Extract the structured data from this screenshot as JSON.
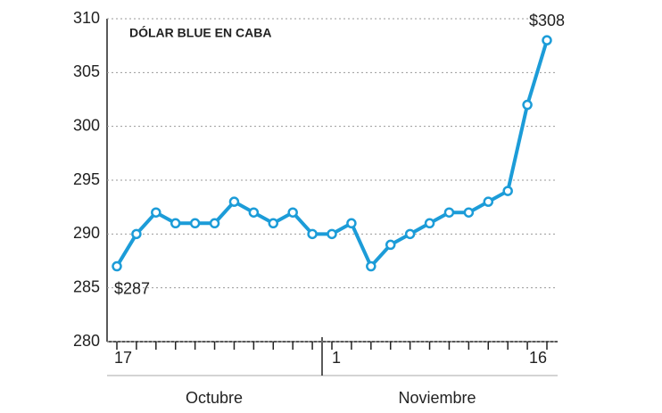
{
  "chart_data": {
    "type": "line",
    "title": "DÓLAR BLUE EN CABA",
    "categories": [
      "17",
      null,
      null,
      null,
      null,
      null,
      null,
      null,
      null,
      null,
      null,
      "1",
      null,
      null,
      null,
      null,
      null,
      null,
      null,
      null,
      null,
      null,
      "16"
    ],
    "x_groups": [
      "Octubre",
      "Noviembre"
    ],
    "series": [
      {
        "name": "Dólar blue",
        "color": "#1c9cd8",
        "values": [
          287,
          290,
          292,
          291,
          291,
          291,
          293,
          292,
          291,
          292,
          290,
          290,
          291,
          287,
          289,
          290,
          291,
          292,
          292,
          293,
          294,
          302,
          308
        ],
        "value_labels": [
          "$287",
          null,
          null,
          null,
          null,
          null,
          null,
          null,
          null,
          null,
          null,
          null,
          null,
          null,
          null,
          null,
          null,
          null,
          null,
          null,
          null,
          null,
          "$308"
        ]
      }
    ],
    "ylim": [
      280,
      310
    ],
    "yticks": [
      280,
      285,
      290,
      295,
      300,
      305,
      310
    ],
    "grid": true
  }
}
